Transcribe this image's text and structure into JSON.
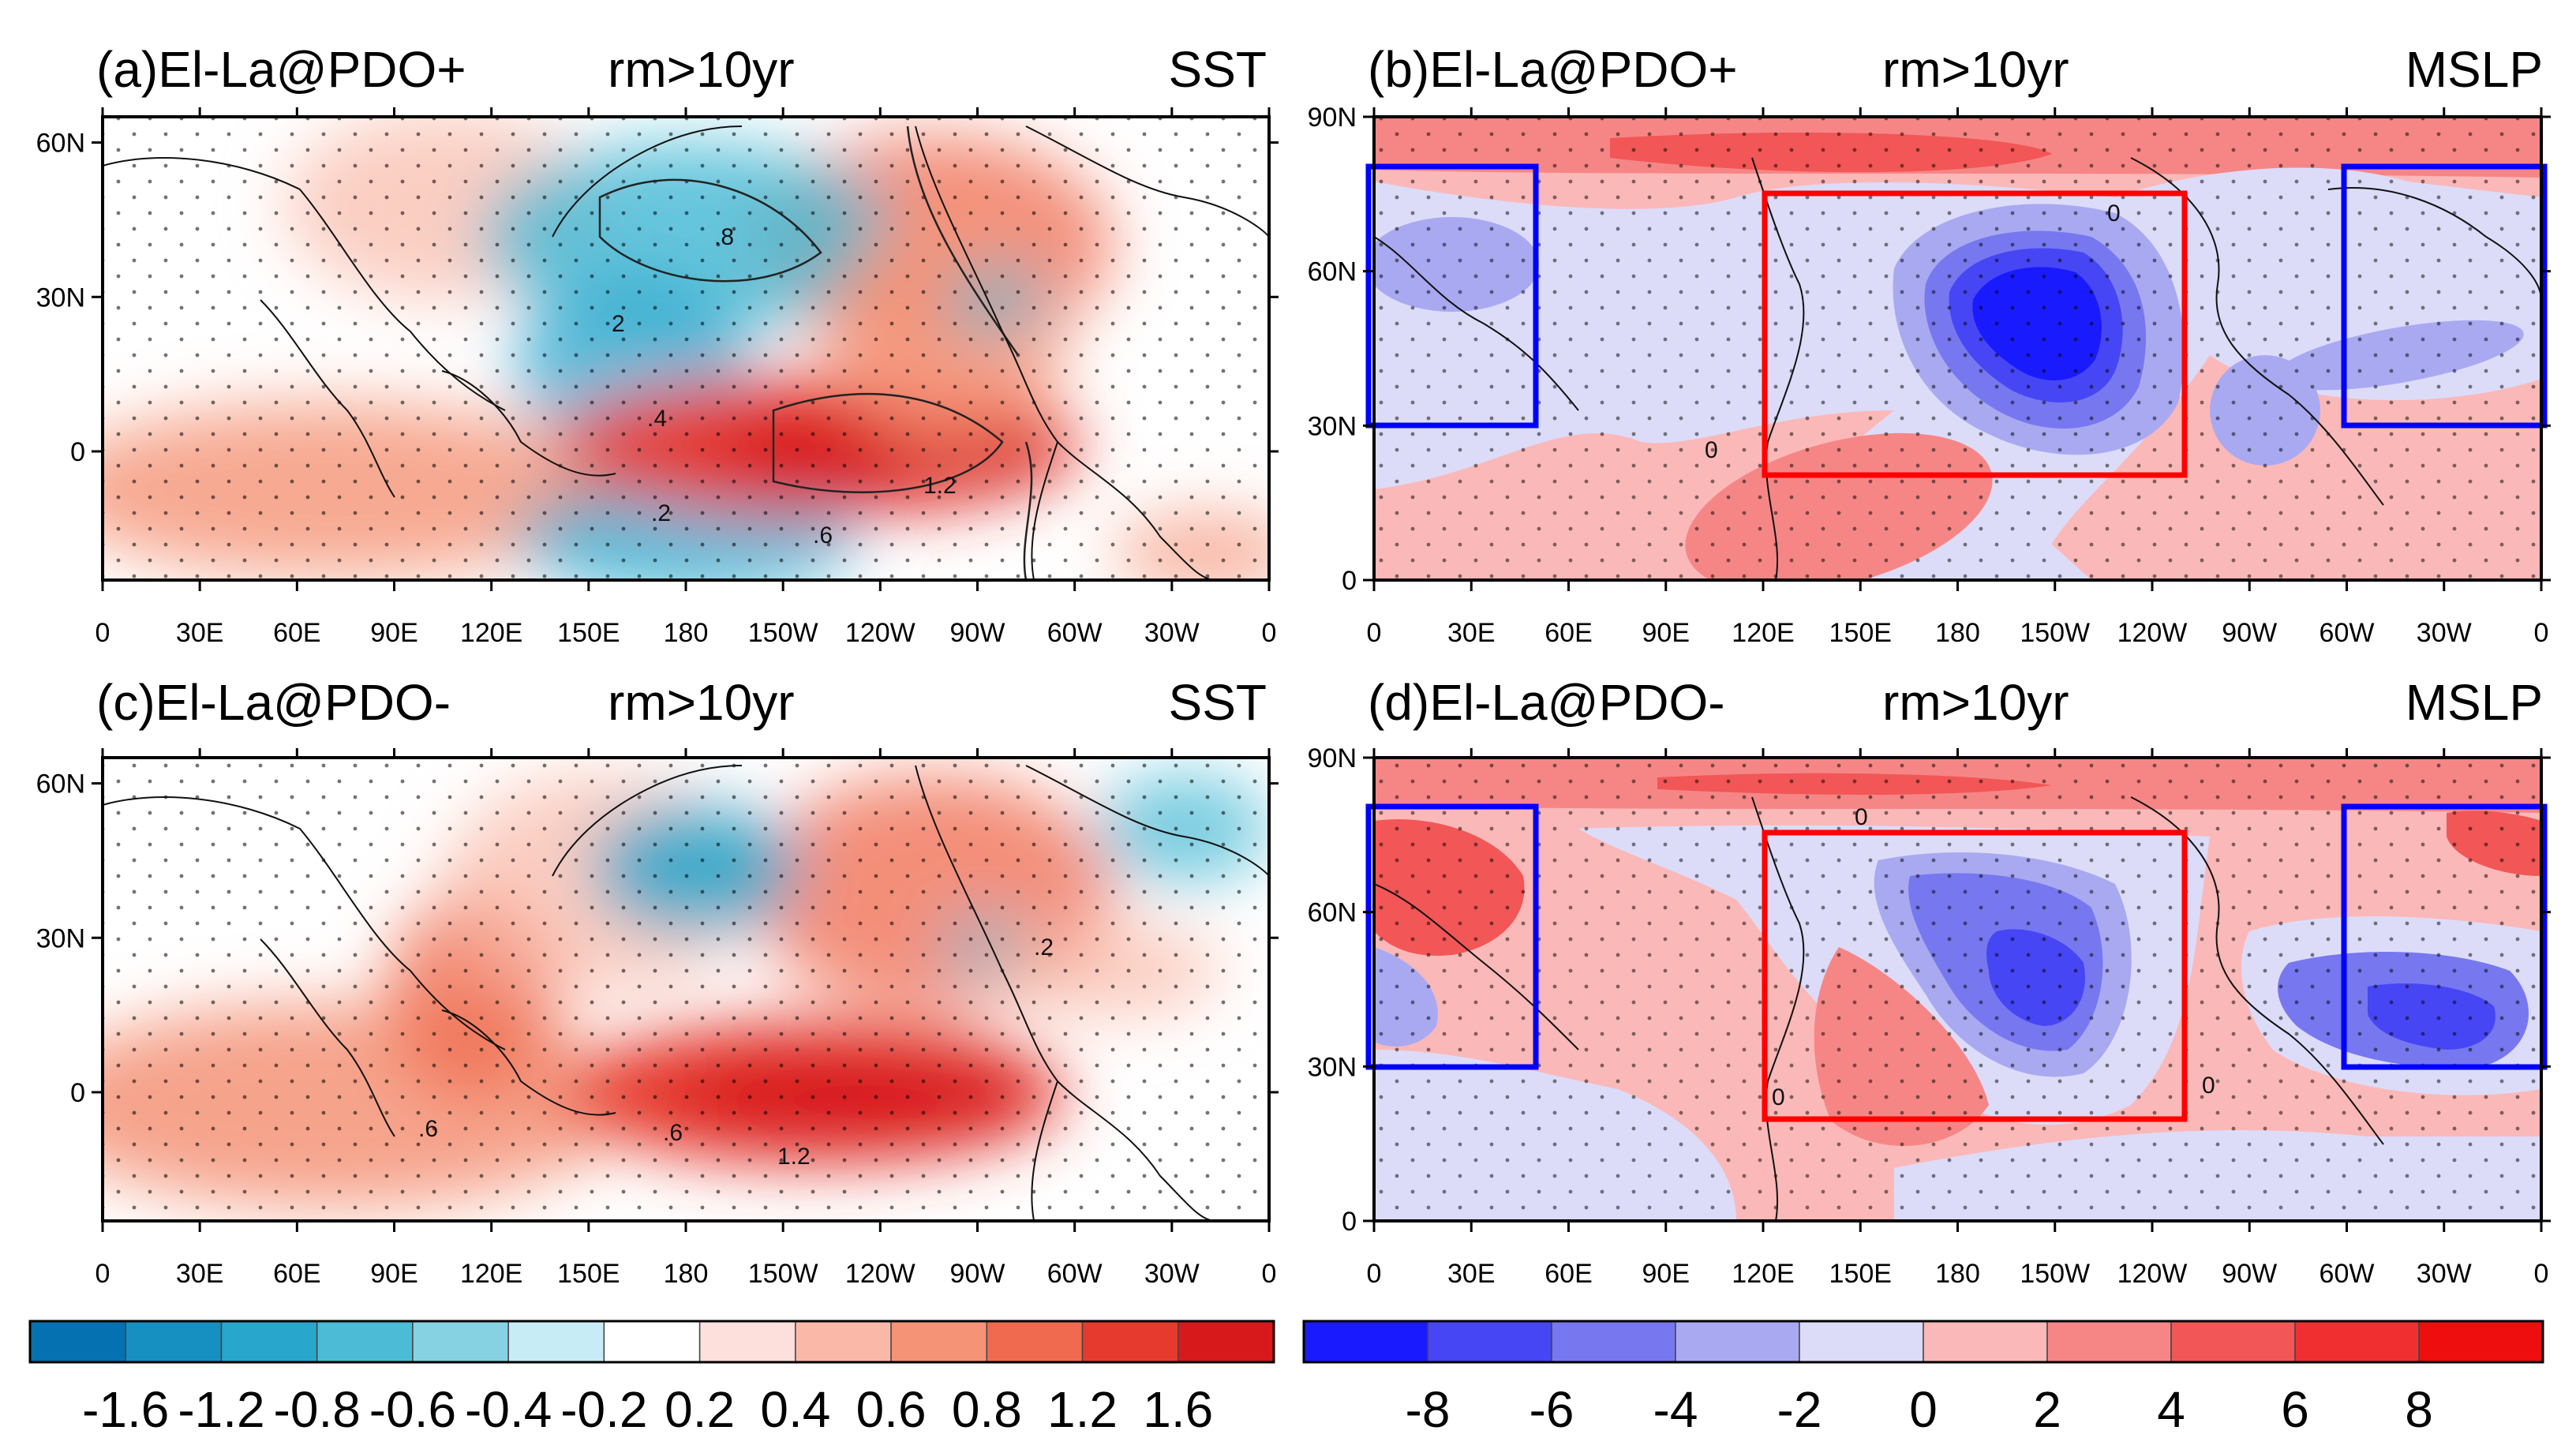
{
  "chart_data": [
    {
      "type": "heatmap",
      "panel": "a",
      "title_left": "(a)El-La@PDO+",
      "title_center": "rm>10yr",
      "title_right": "SST",
      "variable": "SST",
      "x_ticks": [
        "0",
        "30E",
        "60E",
        "90E",
        "120E",
        "150E",
        "180",
        "150W",
        "120W",
        "90W",
        "60W",
        "30W",
        "0"
      ],
      "y_ticks": [
        "60N",
        "30N",
        "0"
      ],
      "xlim": [
        0,
        360
      ],
      "ylim": [
        -25,
        65
      ],
      "contour_labels": [
        ".8",
        "2",
        ".4",
        "1.2",
        ".2",
        ".6"
      ],
      "anomalies": [
        {
          "kind": "warm",
          "center_lon": 225,
          "center_lat": 0,
          "value": 1.6
        },
        {
          "kind": "warm",
          "center_lon": 250,
          "center_lat": 35,
          "value": 0.8
        },
        {
          "kind": "cold",
          "center_lon": 180,
          "center_lat": 35,
          "value": -1.0
        },
        {
          "kind": "cold",
          "center_lon": 170,
          "center_lat": -15,
          "value": -0.6
        }
      ]
    },
    {
      "type": "heatmap",
      "panel": "b",
      "title_left": "(b)El-La@PDO+",
      "title_center": "rm>10yr",
      "title_right": "MSLP",
      "variable": "MSLP",
      "x_ticks": [
        "0",
        "30E",
        "60E",
        "90E",
        "120E",
        "150E",
        "180",
        "150W",
        "120W",
        "90W",
        "60W",
        "30W",
        "0"
      ],
      "y_ticks": [
        "90N",
        "60N",
        "30N",
        "0"
      ],
      "xlim": [
        0,
        360
      ],
      "ylim": [
        0,
        90
      ],
      "contour_labels": [
        "0",
        "0"
      ],
      "boxes": [
        {
          "color": "#ff0000",
          "lon": [
            120,
            250
          ],
          "lat": [
            20,
            75
          ]
        },
        {
          "color": "#0000ff",
          "lon": [
            0,
            50
          ],
          "lat": [
            30,
            80
          ]
        },
        {
          "color": "#0000ff",
          "lon": [
            300,
            360
          ],
          "lat": [
            30,
            80
          ]
        }
      ],
      "anomalies": [
        {
          "kind": "low",
          "center_lon": 205,
          "center_lat": 52,
          "value": -8
        },
        {
          "kind": "high",
          "center_lon": 150,
          "center_lat": 85,
          "value": 6
        },
        {
          "kind": "low",
          "center_lon": 20,
          "center_lat": 62,
          "value": -3
        },
        {
          "kind": "low",
          "center_lon": 330,
          "center_lat": 40,
          "value": -3
        }
      ]
    },
    {
      "type": "heatmap",
      "panel": "c",
      "title_left": "(c)El-La@PDO-",
      "title_center": "rm>10yr",
      "title_right": "SST",
      "variable": "SST",
      "x_ticks": [
        "0",
        "30E",
        "60E",
        "90E",
        "120E",
        "150E",
        "180",
        "150W",
        "120W",
        "90W",
        "60W",
        "30W",
        "0"
      ],
      "y_ticks": [
        "60N",
        "30N",
        "0"
      ],
      "xlim": [
        0,
        360
      ],
      "ylim": [
        -25,
        65
      ],
      "contour_labels": [
        ".6",
        ".6",
        "1.2",
        ".2"
      ],
      "anomalies": [
        {
          "kind": "warm",
          "center_lon": 220,
          "center_lat": 0,
          "value": 1.6
        },
        {
          "kind": "warm",
          "center_lon": 250,
          "center_lat": 35,
          "value": 0.8
        },
        {
          "kind": "cold",
          "center_lon": 185,
          "center_lat": 38,
          "value": -1.2
        },
        {
          "kind": "cold",
          "center_lon": 320,
          "center_lat": 45,
          "value": -0.6
        }
      ]
    },
    {
      "type": "heatmap",
      "panel": "d",
      "title_left": "(d)El-La@PDO-",
      "title_center": "rm>10yr",
      "title_right": "MSLP",
      "variable": "MSLP",
      "x_ticks": [
        "0",
        "30E",
        "60E",
        "90E",
        "120E",
        "150E",
        "180",
        "150W",
        "120W",
        "90W",
        "60W",
        "30W",
        "0"
      ],
      "y_ticks": [
        "90N",
        "60N",
        "30N",
        "0"
      ],
      "xlim": [
        0,
        360
      ],
      "ylim": [
        0,
        90
      ],
      "contour_labels": [
        "0",
        "0",
        "0"
      ],
      "boxes": [
        {
          "color": "#ff0000",
          "lon": [
            120,
            250
          ],
          "lat": [
            20,
            75
          ]
        },
        {
          "color": "#0000ff",
          "lon": [
            0,
            50
          ],
          "lat": [
            30,
            80
          ]
        },
        {
          "color": "#0000ff",
          "lon": [
            300,
            360
          ],
          "lat": [
            30,
            80
          ]
        }
      ],
      "anomalies": [
        {
          "kind": "low",
          "center_lon": 200,
          "center_lat": 50,
          "value": -6
        },
        {
          "kind": "high",
          "center_lon": 150,
          "center_lat": 35,
          "value": 4
        },
        {
          "kind": "high",
          "center_lon": 20,
          "center_lat": 70,
          "value": 5
        },
        {
          "kind": "low",
          "center_lon": 340,
          "center_lat": 45,
          "value": -6
        }
      ]
    }
  ],
  "colorbars": {
    "sst": {
      "labels": [
        "-1.6",
        "-1.2",
        "-0.8",
        "-0.6",
        "-0.4",
        "-0.2",
        "0.2",
        "0.4",
        "0.6",
        "0.8",
        "1.2",
        "1.6"
      ],
      "colors": [
        "#0571b0",
        "#1590c0",
        "#28a6cc",
        "#4bbbd6",
        "#86d2e3",
        "#c7ecf6",
        "#ffffff",
        "#fde0dc",
        "#fab9a8",
        "#f59377",
        "#ef6a4e",
        "#e73a2e",
        "#d7191c"
      ]
    },
    "mslp": {
      "labels": [
        "-8",
        "-6",
        "-4",
        "-2",
        "0",
        "2",
        "4",
        "6",
        "8"
      ],
      "colors": [
        "#1a1aff",
        "#4646f5",
        "#7777f0",
        "#a9a9f2",
        "#dcdcf9",
        "#fbb8b8",
        "#f68686",
        "#f25656",
        "#f03030",
        "#ee0e0e"
      ]
    }
  }
}
